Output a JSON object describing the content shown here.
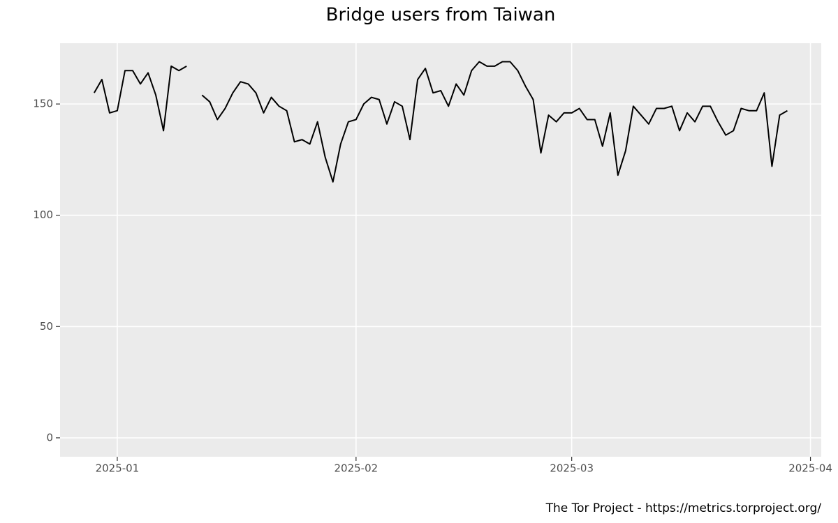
{
  "chart_data": {
    "type": "line",
    "title": "Bridge users from Taiwan",
    "caption": "The Tor Project - https://metrics.torproject.org/",
    "color": "#000000",
    "grid": true,
    "x": [
      -3,
      -2,
      -1,
      0,
      1,
      2,
      3,
      4,
      5,
      6,
      7,
      8,
      9,
      10,
      11,
      12,
      13,
      14,
      15,
      16,
      17,
      18,
      19,
      20,
      21,
      22,
      23,
      24,
      25,
      26,
      27,
      28,
      29,
      30,
      31,
      32,
      33,
      34,
      35,
      36,
      37,
      38,
      39,
      40,
      41,
      42,
      43,
      44,
      45,
      46,
      47,
      48,
      49,
      50,
      51,
      52,
      53,
      54,
      55,
      56,
      57,
      58,
      59,
      60,
      61,
      62,
      63,
      64,
      65,
      66,
      67,
      68,
      69,
      70,
      71,
      72,
      73,
      74,
      75,
      76,
      77,
      78,
      79,
      80,
      81,
      82,
      83,
      84,
      85,
      86,
      87
    ],
    "values": [
      155,
      161,
      146,
      147,
      165,
      165,
      159,
      164,
      154,
      138,
      167,
      165,
      167,
      null,
      154,
      151,
      143,
      148,
      155,
      160,
      159,
      155,
      146,
      153,
      149,
      147,
      133,
      134,
      132,
      142,
      126,
      115,
      132,
      142,
      143,
      150,
      153,
      152,
      141,
      151,
      149,
      134,
      161,
      166,
      155,
      156,
      149,
      159,
      154,
      165,
      169,
      167,
      167,
      169,
      169,
      165,
      158,
      152,
      128,
      145,
      142,
      146,
      146,
      148,
      143,
      143,
      131,
      146,
      118,
      129,
      149,
      145,
      141,
      148,
      148,
      149,
      138,
      146,
      142,
      149,
      149,
      142,
      136,
      138,
      148,
      147,
      147,
      155,
      122,
      145,
      147
    ],
    "xlim": [
      -7.43,
      91.4
    ],
    "xticks": [
      {
        "value": 0,
        "label": "2025-01"
      },
      {
        "value": 31,
        "label": "2025-02"
      },
      {
        "value": 59,
        "label": "2025-03"
      },
      {
        "value": 90,
        "label": "2025-04"
      }
    ],
    "ylim": [
      -8.5,
      177.3
    ],
    "yticks": [
      0,
      50,
      100,
      150
    ]
  }
}
